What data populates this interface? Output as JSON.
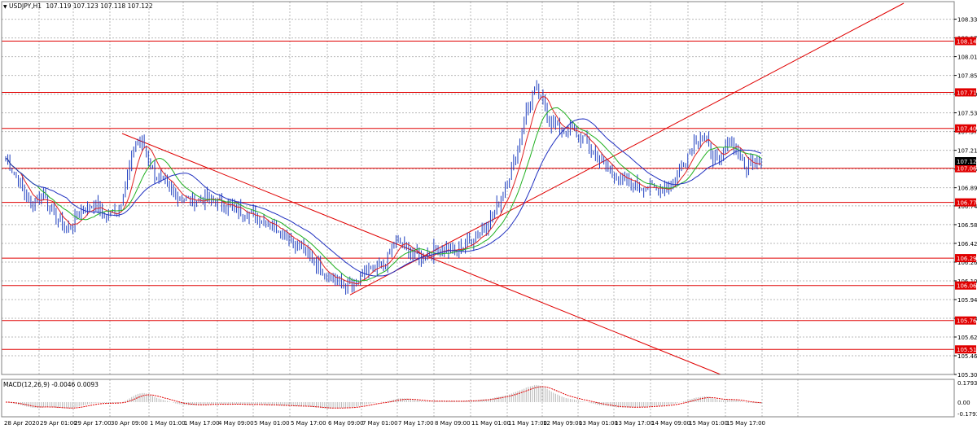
{
  "header": {
    "symbol": "USDJPY,H1",
    "ohlc": "107.119 107.123 107.118 107.122",
    "caret": "▼"
  },
  "macd": {
    "label": "MACD(12,26,9) -0.0046 0.0093",
    "ticks": [
      "0.1793",
      "0.00",
      "-0.1793"
    ]
  },
  "colors": {
    "candles": "#1f3fbf",
    "sma_fast": "#e02020",
    "sma_mid": "#20b020",
    "sma_slow": "#2030c0",
    "levels": "#e00000",
    "macd_hist": "#b8b8b8",
    "macd_signal": "#e00000",
    "grid": "#b8b8b8",
    "current_price_bg": "#000000"
  },
  "chart_data": {
    "type": "candlestick",
    "price_axis": {
      "ticks": [
        "108.335",
        "108.175",
        "108.015",
        "107.855",
        "107.695",
        "107.535",
        "107.375",
        "107.215",
        "107.055",
        "106.895",
        "106.740",
        "106.580",
        "106.420",
        "106.260",
        "106.100",
        "105.940",
        "105.780",
        "105.620",
        "105.460",
        "105.300"
      ],
      "min": 105.3,
      "max": 108.485
    },
    "time_axis": {
      "labels": [
        "28 Apr 2020",
        "29 Apr 01:00",
        "29 Apr 17:00",
        "30 Apr 09:00",
        "1 May 01:00",
        "1 May 17:00",
        "4 May 09:00",
        "5 May 01:00",
        "5 May 17:00",
        "6 May 09:00",
        "7 May 01:00",
        "7 May 17:00",
        "8 May 09:00",
        "11 May 01:00",
        "11 May 17:00",
        "12 May 09:00",
        "13 May 01:00",
        "13 May 17:00",
        "14 May 09:00",
        "15 May 01:00",
        "15 May 17:00"
      ]
    },
    "current_price": "107.122",
    "horizontal_levels": [
      "108.148",
      "107.710",
      "107.402",
      "107.062",
      "106.770",
      "106.294",
      "106.060",
      "105.761",
      "105.514"
    ],
    "trendlines": [
      {
        "name": "falling-trendline",
        "from": [
          "29 Apr 17:00",
          107.38
        ],
        "to": [
          "15 May 17:00",
          105.3
        ]
      },
      {
        "name": "rising-trendline",
        "from": [
          "6 May 09:00",
          105.98
        ],
        "to": [
          "15 May 17:00",
          108.48
        ]
      }
    ],
    "close_path": [
      [
        0,
        107.15
      ],
      [
        6,
        106.95
      ],
      [
        12,
        106.75
      ],
      [
        18,
        106.85
      ],
      [
        24,
        106.62
      ],
      [
        30,
        106.55
      ],
      [
        36,
        106.7
      ],
      [
        42,
        106.75
      ],
      [
        48,
        106.65
      ],
      [
        54,
        106.72
      ],
      [
        58,
        107.0
      ],
      [
        62,
        107.3
      ],
      [
        66,
        107.25
      ],
      [
        70,
        107.05
      ],
      [
        74,
        106.95
      ],
      [
        80,
        106.85
      ],
      [
        88,
        106.78
      ],
      [
        96,
        106.8
      ],
      [
        104,
        106.75
      ],
      [
        112,
        106.7
      ],
      [
        120,
        106.65
      ],
      [
        130,
        106.55
      ],
      [
        140,
        106.4
      ],
      [
        150,
        106.2
      ],
      [
        160,
        106.08
      ],
      [
        166,
        106.05
      ],
      [
        172,
        106.18
      ],
      [
        180,
        106.22
      ],
      [
        186,
        106.45
      ],
      [
        192,
        106.35
      ],
      [
        198,
        106.3
      ],
      [
        206,
        106.38
      ],
      [
        214,
        106.35
      ],
      [
        222,
        106.45
      ],
      [
        230,
        106.6
      ],
      [
        236,
        106.8
      ],
      [
        240,
        107.0
      ],
      [
        244,
        107.25
      ],
      [
        248,
        107.55
      ],
      [
        252,
        107.72
      ],
      [
        256,
        107.62
      ],
      [
        260,
        107.45
      ],
      [
        264,
        107.4
      ],
      [
        270,
        107.38
      ],
      [
        276,
        107.3
      ],
      [
        282,
        107.15
      ],
      [
        288,
        107.05
      ],
      [
        294,
        106.95
      ],
      [
        300,
        106.92
      ],
      [
        306,
        106.9
      ],
      [
        312,
        106.88
      ],
      [
        318,
        106.95
      ],
      [
        324,
        107.15
      ],
      [
        328,
        107.3
      ],
      [
        332,
        107.35
      ],
      [
        336,
        107.2
      ],
      [
        340,
        107.1
      ],
      [
        344,
        107.3
      ],
      [
        348,
        107.25
      ],
      [
        352,
        107.05
      ],
      [
        356,
        107.15
      ],
      [
        360,
        107.12
      ]
    ],
    "bars": 361
  }
}
